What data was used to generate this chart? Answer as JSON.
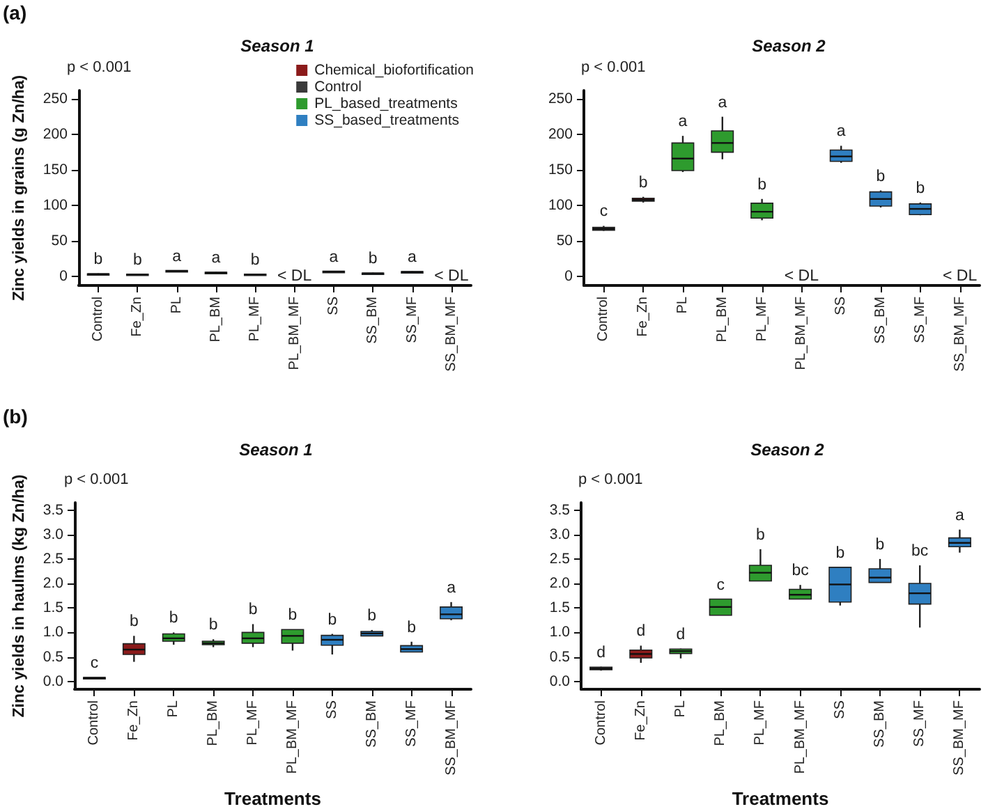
{
  "chart_data": [
    {
      "type": "box",
      "title": "Season 1",
      "ylabel": "Zinc yields in grains (g Zn/ha)",
      "categories": [
        "Control",
        "Fe_Zn",
        "PL",
        "PL_BM",
        "PL_MF",
        "PL_BM_MF",
        "SS",
        "SS_BM",
        "SS_MF",
        "SS_BM_MF"
      ],
      "series": [
        {
          "name": "Chemical_biofortification",
          "color": "#8b1a1a",
          "boxes": [
            null,
            {
              "low": 2,
              "q1": 2,
              "median": 2.5,
              "q3": 3,
              "high": 3
            },
            null,
            null,
            null,
            null,
            null,
            null,
            null,
            null
          ]
        },
        {
          "name": "Control",
          "color": "#3a3a3a",
          "boxes": [
            {
              "low": 2,
              "q1": 2.5,
              "median": 3,
              "q3": 3.5,
              "high": 4
            },
            null,
            null,
            null,
            null,
            null,
            null,
            null,
            null,
            null
          ]
        },
        {
          "name": "PL_based_treatments",
          "color": "#2e9b2e",
          "boxes": [
            null,
            null,
            {
              "low": 7,
              "q1": 7,
              "median": 7.5,
              "q3": 8,
              "high": 8
            },
            {
              "low": 4,
              "q1": 4.5,
              "median": 5,
              "q3": 5.5,
              "high": 6
            },
            {
              "low": 2,
              "q1": 2,
              "median": 2.5,
              "q3": 3,
              "high": 3
            },
            null,
            null,
            null,
            null,
            null
          ]
        },
        {
          "name": "SS_based_treatments",
          "color": "#2f7fc1",
          "boxes": [
            null,
            null,
            null,
            null,
            null,
            null,
            {
              "low": 6,
              "q1": 6,
              "median": 6.5,
              "q3": 7,
              "high": 7
            },
            {
              "low": 3,
              "q1": 3.5,
              "median": 4,
              "q3": 4.5,
              "high": 5
            },
            {
              "low": 5,
              "q1": 5.5,
              "median": 6,
              "q3": 6.5,
              "high": 7
            },
            null
          ]
        }
      ],
      "ylim": [
        -13,
        262
      ],
      "yticks": [
        0,
        50,
        100,
        150,
        200,
        250
      ],
      "legend": "top right",
      "value_labels": [
        "b",
        "b",
        "a",
        "a",
        "b",
        "< DL",
        "a",
        "b",
        "a",
        "< DL"
      ],
      "annotations": [
        "(a)",
        "p < 0.001"
      ]
    },
    {
      "type": "box",
      "title": "Season 2",
      "categories": [
        "Control",
        "Fe_Zn",
        "PL",
        "PL_BM",
        "PL_MF",
        "PL_BM_MF",
        "SS",
        "SS_BM",
        "SS_MF",
        "SS_BM_MF"
      ],
      "series": [
        {
          "color": "#8b1a1a",
          "boxes": [
            null,
            {
              "low": 104,
              "q1": 106,
              "median": 108,
              "q3": 110,
              "high": 112
            },
            null,
            null,
            null,
            null,
            null,
            null,
            null,
            null
          ]
        },
        {
          "color": "#3a3a3a",
          "boxes": [
            {
              "low": 64,
              "q1": 65,
              "median": 67,
              "q3": 69,
              "high": 71
            },
            null,
            null,
            null,
            null,
            null,
            null,
            null,
            null,
            null
          ]
        },
        {
          "color": "#2e9b2e",
          "boxes": [
            null,
            null,
            {
              "low": 147,
              "q1": 149,
              "median": 166,
              "q3": 188,
              "high": 198
            },
            {
              "low": 165,
              "q1": 175,
              "median": 188,
              "q3": 205,
              "high": 225
            },
            {
              "low": 79,
              "q1": 82,
              "median": 91,
              "q3": 103,
              "high": 109
            },
            null,
            null,
            null,
            null,
            null
          ]
        },
        {
          "color": "#2f7fc1",
          "boxes": [
            null,
            null,
            null,
            null,
            null,
            null,
            {
              "low": 160,
              "q1": 162,
              "median": 169,
              "q3": 178,
              "high": 184
            },
            {
              "low": 97,
              "q1": 99,
              "median": 109,
              "q3": 119,
              "high": 121
            },
            {
              "low": 86,
              "q1": 87,
              "median": 95,
              "q3": 102,
              "high": 104
            },
            null
          ]
        }
      ],
      "ylim": [
        -13,
        262
      ],
      "yticks": [
        0,
        50,
        100,
        150,
        200,
        250
      ],
      "value_labels": [
        "c",
        "b",
        "a",
        "a",
        "b",
        "< DL",
        "a",
        "b",
        "b",
        "< DL"
      ],
      "annotations": [
        "p < 0.001"
      ]
    },
    {
      "type": "box",
      "title": "Season 1",
      "xlabel": "Treatments",
      "ylabel": "Zinc yields in haulms (kg Zn/ha)",
      "categories": [
        "Control",
        "Fe_Zn",
        "PL",
        "PL_BM",
        "PL_MF",
        "PL_BM_MF",
        "SS",
        "SS_BM",
        "SS_MF",
        "SS_BM_MF"
      ],
      "series": [
        {
          "color": "#8b1a1a",
          "boxes": [
            null,
            {
              "low": 0.4,
              "q1": 0.55,
              "median": 0.65,
              "q3": 0.77,
              "high": 0.93
            },
            null,
            null,
            null,
            null,
            null,
            null,
            null,
            null
          ]
        },
        {
          "color": "#3a3a3a",
          "boxes": [
            {
              "low": 0.06,
              "q1": 0.06,
              "median": 0.07,
              "q3": 0.08,
              "high": 0.08
            },
            null,
            null,
            null,
            null,
            null,
            null,
            null,
            null,
            null
          ]
        },
        {
          "color": "#2e9b2e",
          "boxes": [
            null,
            null,
            {
              "low": 0.75,
              "q1": 0.82,
              "median": 0.88,
              "q3": 0.97,
              "high": 1.0
            },
            {
              "low": 0.7,
              "q1": 0.75,
              "median": 0.78,
              "q3": 0.82,
              "high": 0.86
            },
            {
              "low": 0.7,
              "q1": 0.78,
              "median": 0.88,
              "q3": 1.0,
              "high": 1.17
            },
            {
              "low": 0.63,
              "q1": 0.78,
              "median": 0.93,
              "q3": 1.06,
              "high": 1.06
            },
            null,
            null,
            null,
            null
          ]
        },
        {
          "color": "#2f7fc1",
          "boxes": [
            null,
            null,
            null,
            null,
            null,
            null,
            {
              "low": 0.55,
              "q1": 0.74,
              "median": 0.85,
              "q3": 0.94,
              "high": 0.97
            },
            {
              "low": 0.92,
              "q1": 0.93,
              "median": 0.98,
              "q3": 1.02,
              "high": 1.05
            },
            {
              "low": 0.6,
              "q1": 0.6,
              "median": 0.66,
              "q3": 0.73,
              "high": 0.81
            },
            {
              "low": 1.25,
              "q1": 1.28,
              "median": 1.37,
              "q3": 1.52,
              "high": 1.62
            }
          ]
        }
      ],
      "ylim": [
        -0.16,
        3.65
      ],
      "yticks": [
        {
          "value": 0,
          "label": "0.0"
        },
        {
          "value": 0.5,
          "label": "0.5"
        },
        {
          "value": 1,
          "label": "1.0"
        },
        {
          "value": 1.5,
          "label": "1.5"
        },
        {
          "value": 2,
          "label": "2.0"
        },
        {
          "value": 2.5,
          "label": "2.5"
        },
        {
          "value": 3,
          "label": "3.0"
        },
        {
          "value": 3.5,
          "label": "3.5"
        }
      ],
      "value_labels": [
        "c",
        "b",
        "b",
        "b",
        "b",
        "b",
        "b",
        "b",
        "b",
        "a"
      ],
      "annotations": [
        "(b)",
        "p < 0.001"
      ]
    },
    {
      "type": "box",
      "title": "Season 2",
      "xlabel": "Treatments",
      "categories": [
        "Control",
        "Fe_Zn",
        "PL",
        "PL_BM",
        "PL_MF",
        "PL_BM_MF",
        "SS",
        "SS_BM",
        "SS_MF",
        "SS_BM_MF"
      ],
      "series": [
        {
          "color": "#8b1a1a",
          "boxes": [
            null,
            {
              "low": 0.38,
              "q1": 0.48,
              "median": 0.56,
              "q3": 0.64,
              "high": 0.73
            },
            null,
            null,
            null,
            null,
            null,
            null,
            null,
            null
          ]
        },
        {
          "color": "#3a3a3a",
          "boxes": [
            {
              "low": 0.22,
              "q1": 0.24,
              "median": 0.26,
              "q3": 0.29,
              "high": 0.3
            },
            null,
            null,
            null,
            null,
            null,
            null,
            null,
            null,
            null
          ]
        },
        {
          "color": "#2e9b2e",
          "boxes": [
            null,
            null,
            {
              "low": 0.47,
              "q1": 0.57,
              "median": 0.62,
              "q3": 0.66,
              "high": 0.67
            },
            {
              "low": 1.35,
              "q1": 1.35,
              "median": 1.52,
              "q3": 1.68,
              "high": 1.68
            },
            {
              "low": 2.05,
              "q1": 2.05,
              "median": 2.22,
              "q3": 2.37,
              "high": 2.7
            },
            {
              "low": 1.68,
              "q1": 1.68,
              "median": 1.77,
              "q3": 1.88,
              "high": 1.97
            },
            null,
            null,
            null,
            null
          ]
        },
        {
          "color": "#2f7fc1",
          "boxes": [
            null,
            null,
            null,
            null,
            null,
            null,
            {
              "low": 1.55,
              "q1": 1.62,
              "median": 1.98,
              "q3": 2.33,
              "high": 2.33
            },
            {
              "low": 2.02,
              "q1": 2.02,
              "median": 2.12,
              "q3": 2.3,
              "high": 2.5
            },
            {
              "low": 1.1,
              "q1": 1.58,
              "median": 1.8,
              "q3": 2.0,
              "high": 2.37
            },
            {
              "low": 2.63,
              "q1": 2.75,
              "median": 2.83,
              "q3": 2.93,
              "high": 3.1
            }
          ]
        }
      ],
      "ylim": [
        -0.16,
        3.65
      ],
      "yticks": [
        {
          "value": 0,
          "label": "0.0"
        },
        {
          "value": 0.5,
          "label": "0.5"
        },
        {
          "value": 1,
          "label": "1.0"
        },
        {
          "value": 1.5,
          "label": "1.5"
        },
        {
          "value": 2,
          "label": "2.0"
        },
        {
          "value": 2.5,
          "label": "2.5"
        },
        {
          "value": 3,
          "label": "3.0"
        },
        {
          "value": 3.5,
          "label": "3.5"
        }
      ],
      "value_labels": [
        "d",
        "d",
        "d",
        "c",
        "b",
        "bc",
        "b",
        "b",
        "bc",
        "a"
      ],
      "annotations": [
        "p < 0.001"
      ]
    }
  ]
}
